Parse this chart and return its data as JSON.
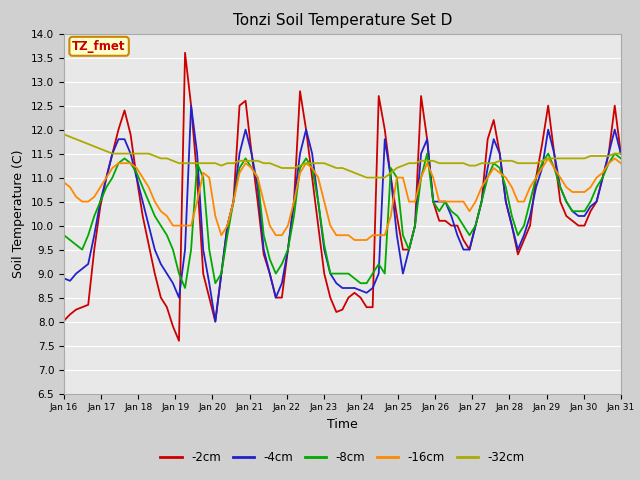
{
  "title": "Tonzi Soil Temperature Set D",
  "xlabel": "Time",
  "ylabel": "Soil Temperature (C)",
  "ylim": [
    6.5,
    14.0
  ],
  "yticks": [
    6.5,
    7.0,
    7.5,
    8.0,
    8.5,
    9.0,
    9.5,
    10.0,
    10.5,
    11.0,
    11.5,
    12.0,
    12.5,
    13.0,
    13.5,
    14.0
  ],
  "xtick_labels": [
    "Jan 16",
    "Jan 17",
    "Jan 18",
    "Jan 19",
    "Jan 20",
    "Jan 21",
    "Jan 22",
    "Jan 23",
    "Jan 24",
    "Jan 25",
    "Jan 26",
    "Jan 27",
    "Jan 28",
    "Jan 29",
    "Jan 30",
    "Jan 31"
  ],
  "bg_color": "#d0d0d0",
  "plot_bg_color": "#e8e8e8",
  "grid_color": "#ffffff",
  "legend_labels": [
    "-2cm",
    "-4cm",
    "-8cm",
    "-16cm",
    "-32cm"
  ],
  "line_colors": [
    "#cc0000",
    "#2222cc",
    "#00aa00",
    "#ff8800",
    "#aaaa00"
  ],
  "line_width": 1.3,
  "annotation_text": "TZ_fmet",
  "annotation_color": "#cc0000",
  "annotation_bg": "#ffffcc",
  "annotation_border": "#cc8800",
  "t2cm": [
    8.02,
    8.15,
    8.25,
    8.3,
    8.35,
    9.5,
    10.4,
    11.0,
    11.5,
    12.0,
    12.4,
    11.9,
    11.0,
    10.2,
    9.6,
    9.0,
    8.5,
    8.3,
    7.9,
    7.6,
    13.6,
    12.5,
    11.0,
    9.0,
    8.5,
    8.0,
    9.0,
    10.0,
    10.5,
    12.5,
    12.6,
    11.5,
    10.5,
    9.4,
    9.0,
    8.5,
    8.5,
    9.5,
    10.5,
    12.8,
    12.0,
    11.0,
    10.0,
    9.0,
    8.5,
    8.2,
    8.25,
    8.5,
    8.6,
    8.5,
    8.3,
    8.3,
    12.7,
    12.0,
    11.0,
    10.2,
    9.5,
    9.5,
    10.0,
    12.7,
    11.8,
    10.5,
    10.1,
    10.1,
    10.0,
    10.0,
    9.7,
    9.5,
    10.0,
    10.5,
    11.8,
    12.2,
    11.5,
    10.5,
    10.0,
    9.4,
    9.7,
    10.0,
    11.0,
    11.7,
    12.5,
    11.5,
    10.5,
    10.2,
    10.1,
    10.0,
    10.0,
    10.3,
    10.5,
    11.0,
    11.5,
    12.5,
    11.5
  ],
  "t4cm": [
    8.9,
    8.85,
    9.0,
    9.1,
    9.2,
    9.8,
    10.5,
    11.0,
    11.5,
    11.8,
    11.8,
    11.5,
    11.0,
    10.5,
    10.0,
    9.5,
    9.2,
    9.0,
    8.8,
    8.5,
    9.5,
    12.5,
    11.5,
    9.5,
    8.8,
    8.0,
    9.0,
    10.0,
    10.5,
    11.5,
    12.0,
    11.5,
    10.8,
    9.5,
    9.0,
    8.5,
    8.8,
    9.5,
    10.5,
    11.5,
    12.0,
    11.5,
    10.5,
    9.5,
    9.0,
    8.8,
    8.7,
    8.7,
    8.7,
    8.65,
    8.6,
    8.7,
    9.0,
    11.8,
    11.0,
    9.8,
    9.0,
    9.5,
    10.0,
    11.5,
    11.8,
    10.5,
    10.5,
    10.5,
    10.2,
    9.8,
    9.5,
    9.5,
    10.0,
    10.5,
    11.2,
    11.8,
    11.5,
    10.5,
    10.0,
    9.5,
    9.8,
    10.2,
    10.8,
    11.2,
    12.0,
    11.5,
    10.8,
    10.5,
    10.3,
    10.2,
    10.2,
    10.4,
    10.5,
    11.0,
    11.5,
    12.0,
    11.5
  ],
  "t8cm": [
    9.8,
    9.7,
    9.6,
    9.5,
    9.8,
    10.2,
    10.5,
    10.8,
    11.0,
    11.3,
    11.4,
    11.3,
    11.1,
    10.8,
    10.5,
    10.2,
    10.0,
    9.8,
    9.5,
    9.0,
    8.7,
    9.5,
    11.3,
    11.0,
    9.5,
    8.8,
    9.0,
    9.8,
    10.5,
    11.2,
    11.4,
    11.2,
    11.0,
    9.8,
    9.3,
    9.0,
    9.2,
    9.5,
    10.2,
    11.2,
    11.4,
    11.2,
    10.5,
    9.6,
    9.0,
    9.0,
    9.0,
    9.0,
    8.9,
    8.8,
    8.8,
    9.0,
    9.2,
    9.0,
    11.2,
    11.0,
    9.8,
    9.5,
    10.0,
    11.0,
    11.5,
    10.5,
    10.3,
    10.5,
    10.3,
    10.2,
    10.0,
    9.8,
    10.0,
    10.5,
    11.0,
    11.3,
    11.2,
    10.8,
    10.2,
    9.8,
    10.0,
    10.5,
    11.0,
    11.3,
    11.5,
    11.2,
    10.8,
    10.5,
    10.3,
    10.3,
    10.3,
    10.5,
    10.8,
    11.0,
    11.3,
    11.5,
    11.4
  ],
  "t16cm": [
    10.9,
    10.8,
    10.6,
    10.5,
    10.5,
    10.6,
    10.8,
    11.0,
    11.2,
    11.3,
    11.3,
    11.3,
    11.2,
    11.0,
    10.8,
    10.5,
    10.3,
    10.2,
    10.0,
    10.0,
    10.0,
    10.0,
    10.5,
    11.1,
    11.0,
    10.2,
    9.8,
    10.0,
    10.5,
    11.1,
    11.3,
    11.2,
    11.0,
    10.5,
    10.0,
    9.8,
    9.8,
    10.0,
    10.5,
    11.1,
    11.3,
    11.2,
    11.0,
    10.5,
    10.0,
    9.8,
    9.8,
    9.8,
    9.7,
    9.7,
    9.7,
    9.8,
    9.8,
    9.8,
    10.2,
    11.0,
    11.0,
    10.5,
    10.5,
    11.0,
    11.3,
    11.0,
    10.5,
    10.5,
    10.5,
    10.5,
    10.5,
    10.3,
    10.5,
    10.8,
    11.0,
    11.2,
    11.1,
    11.0,
    10.8,
    10.5,
    10.5,
    10.8,
    11.0,
    11.2,
    11.4,
    11.2,
    11.0,
    10.8,
    10.7,
    10.7,
    10.7,
    10.8,
    11.0,
    11.1,
    11.3,
    11.4,
    11.3
  ],
  "t32cm": [
    11.9,
    11.85,
    11.8,
    11.75,
    11.7,
    11.65,
    11.6,
    11.55,
    11.5,
    11.5,
    11.5,
    11.5,
    11.5,
    11.5,
    11.5,
    11.45,
    11.4,
    11.4,
    11.35,
    11.3,
    11.3,
    11.3,
    11.3,
    11.3,
    11.3,
    11.3,
    11.25,
    11.3,
    11.3,
    11.35,
    11.35,
    11.35,
    11.35,
    11.3,
    11.3,
    11.25,
    11.2,
    11.2,
    11.2,
    11.25,
    11.3,
    11.3,
    11.3,
    11.3,
    11.25,
    11.2,
    11.2,
    11.15,
    11.1,
    11.05,
    11.0,
    11.0,
    11.0,
    11.0,
    11.1,
    11.2,
    11.25,
    11.3,
    11.3,
    11.35,
    11.35,
    11.35,
    11.3,
    11.3,
    11.3,
    11.3,
    11.3,
    11.25,
    11.25,
    11.3,
    11.3,
    11.3,
    11.35,
    11.35,
    11.35,
    11.3,
    11.3,
    11.3,
    11.3,
    11.35,
    11.4,
    11.4,
    11.4,
    11.4,
    11.4,
    11.4,
    11.4,
    11.45,
    11.45,
    11.45,
    11.45,
    11.5,
    11.5
  ]
}
